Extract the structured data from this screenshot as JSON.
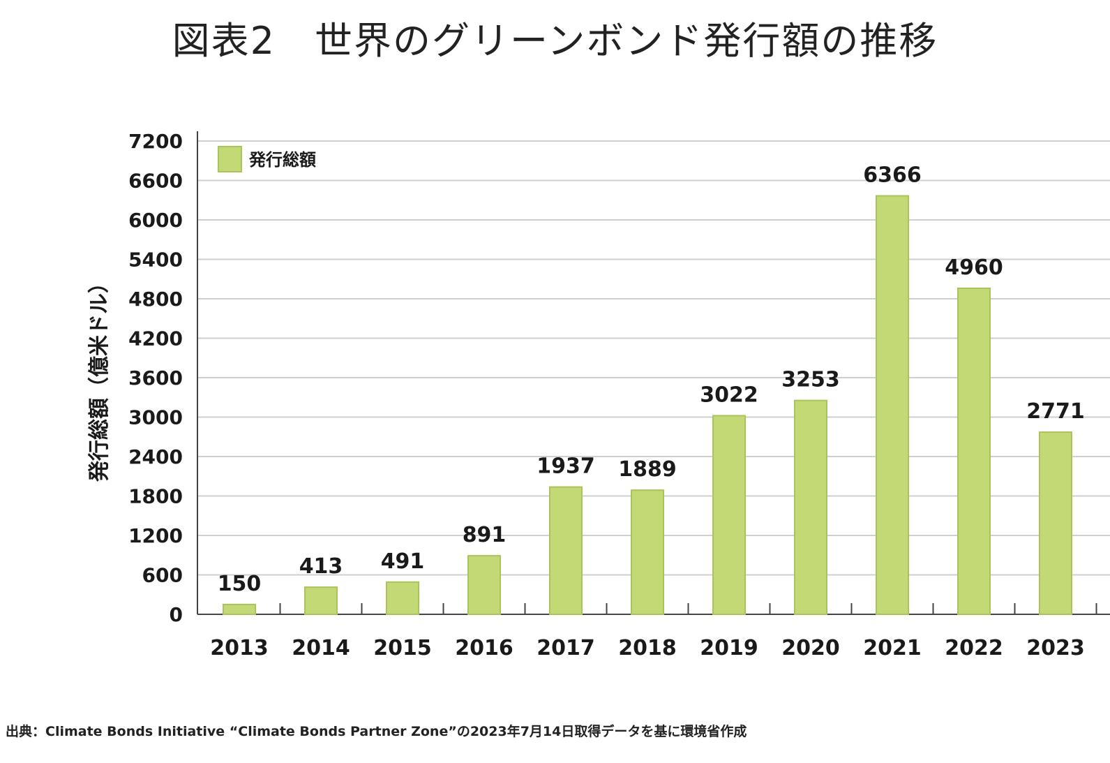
{
  "title": "図表2　世界のグリーンボンド発行額の推移",
  "source_note": "出典：Climate Bonds Initiative “Climate Bonds Partner Zone”の2023年7月14日取得データを基に環境省作成",
  "colors": {
    "bar": "#c3d976",
    "bar_edge": "#a9c45a",
    "grid": "#cfcfcf",
    "axis": "#444444"
  },
  "chart_data": {
    "type": "bar",
    "title": "図表2　世界のグリーンボンド発行額の推移",
    "xlabel": "",
    "ylabel": "発行総額（億米ドル）",
    "ylim": [
      0,
      7200
    ],
    "yticks": [
      0,
      600,
      1200,
      1800,
      2400,
      3000,
      3600,
      4200,
      4800,
      5400,
      6000,
      6600,
      7200
    ],
    "grid": true,
    "legend_position": "top-left",
    "categories": [
      "2013",
      "2014",
      "2015",
      "2016",
      "2017",
      "2018",
      "2019",
      "2020",
      "2021",
      "2022",
      "2023"
    ],
    "series": [
      {
        "name": "発行総額",
        "values": [
          150,
          413,
          491,
          891,
          1937,
          1889,
          3022,
          3253,
          6366,
          4960,
          2771
        ]
      }
    ]
  }
}
